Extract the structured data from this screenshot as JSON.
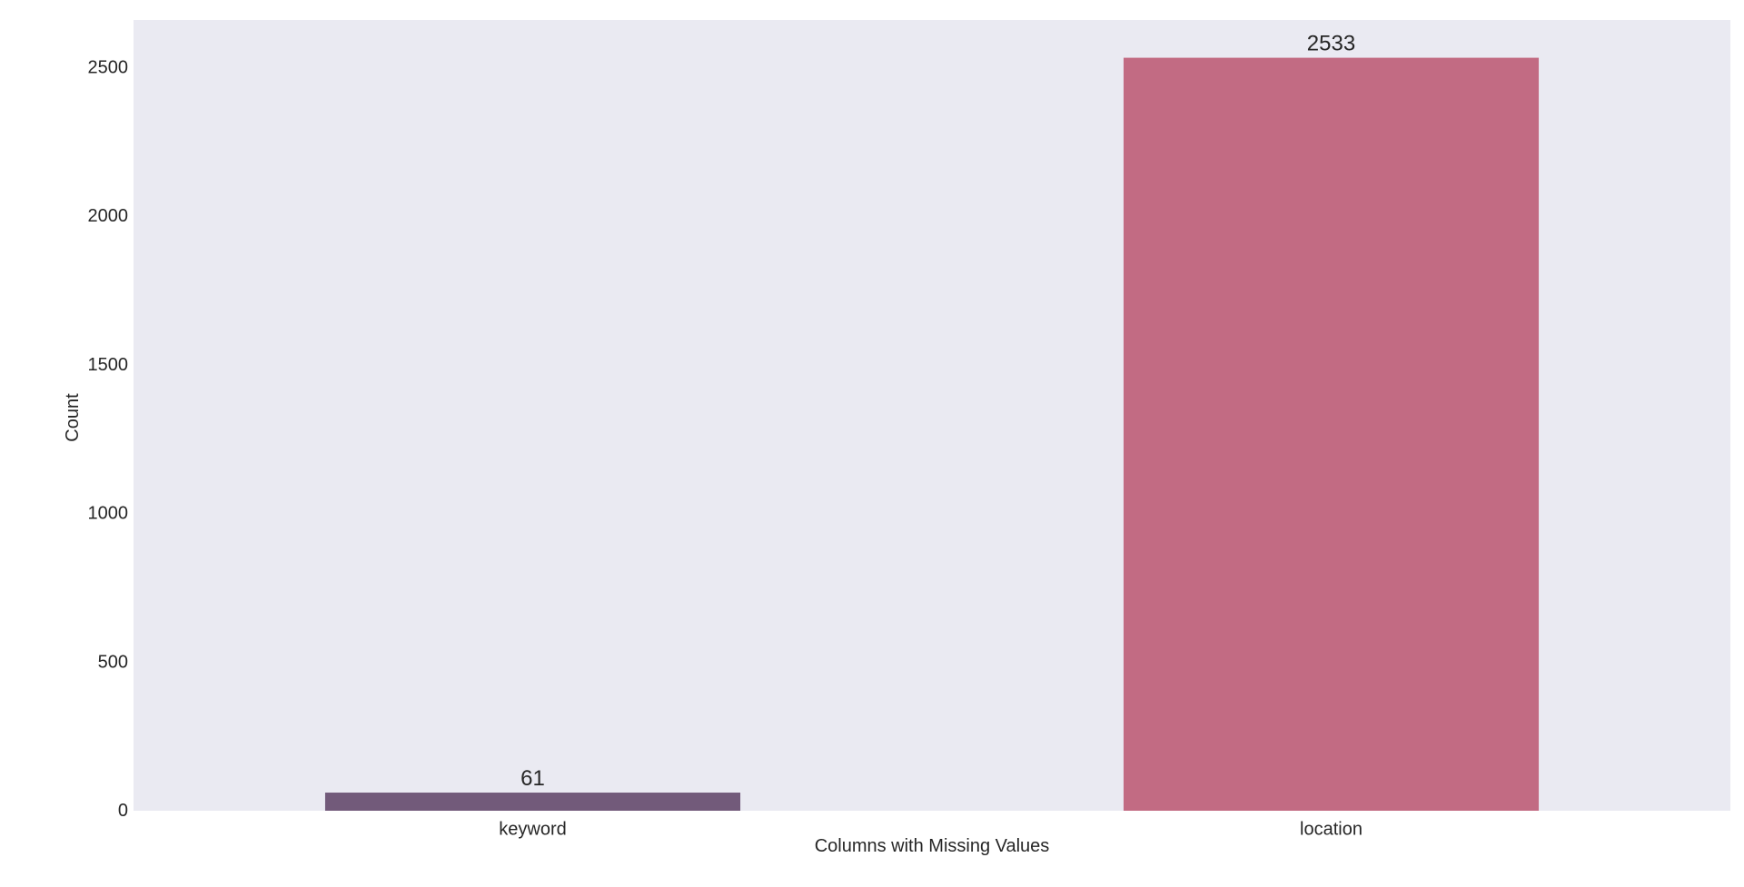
{
  "chart_data": {
    "type": "bar",
    "categories": [
      "keyword",
      "location"
    ],
    "values": [
      61,
      2533
    ],
    "data_labels": [
      "61",
      "2533"
    ],
    "colors": [
      "#725a7a",
      "#c26b83"
    ],
    "xlabel": "Columns with Missing Values",
    "ylabel": "Count",
    "ylim": [
      0,
      2660
    ],
    "yticks": [
      0,
      500,
      1000,
      1500,
      2000,
      2500
    ],
    "ytick_labels": [
      "0",
      "500",
      "1000",
      "1500",
      "2000",
      "2500"
    ],
    "grid": false,
    "background": "#eaeaf2"
  }
}
